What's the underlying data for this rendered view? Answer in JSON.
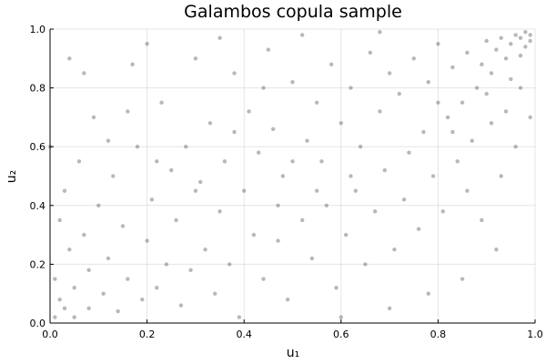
{
  "chart_data": {
    "type": "scatter",
    "title": "Galambos copula sample",
    "xlabel": "u₁",
    "ylabel": "u₂",
    "xlim": [
      0,
      1
    ],
    "ylim": [
      0,
      1
    ],
    "xticks": [
      "0.0",
      "0.2",
      "0.4",
      "0.6",
      "0.8",
      "1.0"
    ],
    "yticks": [
      "0.0",
      "0.2",
      "0.4",
      "0.6",
      "0.8",
      "1.0"
    ],
    "grid": true,
    "legend": "none",
    "marker_color": "#333333",
    "points": [
      [
        0.98,
        0.99
      ],
      [
        0.99,
        0.98
      ],
      [
        0.97,
        0.97
      ],
      [
        0.96,
        0.98
      ],
      [
        0.99,
        0.96
      ],
      [
        0.95,
        0.95
      ],
      [
        0.98,
        0.94
      ],
      [
        0.93,
        0.97
      ],
      [
        0.92,
        0.93
      ],
      [
        0.97,
        0.91
      ],
      [
        0.94,
        0.9
      ],
      [
        0.9,
        0.96
      ],
      [
        0.89,
        0.88
      ],
      [
        0.91,
        0.85
      ],
      [
        0.86,
        0.92
      ],
      [
        0.88,
        0.8
      ],
      [
        0.83,
        0.87
      ],
      [
        0.95,
        0.83
      ],
      [
        0.8,
        0.95
      ],
      [
        0.85,
        0.75
      ],
      [
        0.78,
        0.82
      ],
      [
        0.82,
        0.7
      ],
      [
        0.75,
        0.9
      ],
      [
        0.72,
        0.78
      ],
      [
        0.7,
        0.85
      ],
      [
        0.77,
        0.65
      ],
      [
        0.68,
        0.72
      ],
      [
        0.66,
        0.92
      ],
      [
        0.64,
        0.6
      ],
      [
        0.62,
        0.8
      ],
      [
        0.6,
        0.68
      ],
      [
        0.58,
        0.88
      ],
      [
        0.56,
        0.55
      ],
      [
        0.55,
        0.75
      ],
      [
        0.53,
        0.62
      ],
      [
        0.5,
        0.82
      ],
      [
        0.48,
        0.5
      ],
      [
        0.46,
        0.66
      ],
      [
        0.45,
        0.93
      ],
      [
        0.43,
        0.58
      ],
      [
        0.41,
        0.72
      ],
      [
        0.4,
        0.45
      ],
      [
        0.38,
        0.85
      ],
      [
        0.36,
        0.55
      ],
      [
        0.35,
        0.38
      ],
      [
        0.33,
        0.68
      ],
      [
        0.31,
        0.48
      ],
      [
        0.3,
        0.9
      ],
      [
        0.28,
        0.6
      ],
      [
        0.26,
        0.35
      ],
      [
        0.25,
        0.52
      ],
      [
        0.23,
        0.75
      ],
      [
        0.21,
        0.42
      ],
      [
        0.2,
        0.28
      ],
      [
        0.18,
        0.6
      ],
      [
        0.17,
        0.88
      ],
      [
        0.15,
        0.33
      ],
      [
        0.13,
        0.5
      ],
      [
        0.12,
        0.22
      ],
      [
        0.1,
        0.4
      ],
      [
        0.09,
        0.7
      ],
      [
        0.08,
        0.18
      ],
      [
        0.07,
        0.3
      ],
      [
        0.06,
        0.55
      ],
      [
        0.05,
        0.12
      ],
      [
        0.04,
        0.25
      ],
      [
        0.03,
        0.05
      ],
      [
        0.02,
        0.08
      ],
      [
        0.01,
        0.02
      ],
      [
        0.02,
        0.35
      ],
      [
        0.0,
        0.6
      ],
      [
        0.01,
        0.15
      ],
      [
        0.03,
        0.45
      ],
      [
        0.05,
        0.02
      ],
      [
        0.08,
        0.05
      ],
      [
        0.11,
        0.1
      ],
      [
        0.14,
        0.04
      ],
      [
        0.16,
        0.15
      ],
      [
        0.19,
        0.08
      ],
      [
        0.22,
        0.12
      ],
      [
        0.24,
        0.2
      ],
      [
        0.27,
        0.06
      ],
      [
        0.29,
        0.18
      ],
      [
        0.32,
        0.25
      ],
      [
        0.34,
        0.1
      ],
      [
        0.37,
        0.2
      ],
      [
        0.39,
        0.02
      ],
      [
        0.42,
        0.3
      ],
      [
        0.44,
        0.15
      ],
      [
        0.47,
        0.28
      ],
      [
        0.49,
        0.08
      ],
      [
        0.52,
        0.35
      ],
      [
        0.54,
        0.22
      ],
      [
        0.57,
        0.4
      ],
      [
        0.59,
        0.12
      ],
      [
        0.61,
        0.3
      ],
      [
        0.63,
        0.45
      ],
      [
        0.65,
        0.2
      ],
      [
        0.67,
        0.38
      ],
      [
        0.69,
        0.52
      ],
      [
        0.71,
        0.25
      ],
      [
        0.73,
        0.42
      ],
      [
        0.74,
        0.58
      ],
      [
        0.76,
        0.32
      ],
      [
        0.79,
        0.5
      ],
      [
        0.81,
        0.38
      ],
      [
        0.84,
        0.55
      ],
      [
        0.86,
        0.45
      ],
      [
        0.87,
        0.62
      ],
      [
        0.89,
        0.35
      ],
      [
        0.91,
        0.68
      ],
      [
        0.93,
        0.5
      ],
      [
        0.94,
        0.72
      ],
      [
        0.96,
        0.6
      ],
      [
        0.97,
        0.8
      ],
      [
        0.99,
        0.7
      ],
      [
        0.92,
        0.25
      ],
      [
        0.85,
        0.15
      ],
      [
        0.78,
        0.1
      ],
      [
        0.7,
        0.05
      ],
      [
        0.6,
        0.02
      ],
      [
        0.5,
        0.55
      ],
      [
        0.44,
        0.8
      ],
      [
        0.38,
        0.65
      ],
      [
        0.3,
        0.45
      ],
      [
        0.22,
        0.55
      ],
      [
        0.16,
        0.72
      ],
      [
        0.12,
        0.62
      ],
      [
        0.07,
        0.85
      ],
      [
        0.04,
        0.9
      ],
      [
        0.2,
        0.95
      ],
      [
        0.35,
        0.97
      ],
      [
        0.52,
        0.98
      ],
      [
        0.68,
        0.99
      ],
      [
        0.62,
        0.5
      ],
      [
        0.55,
        0.45
      ],
      [
        0.47,
        0.4
      ],
      [
        0.8,
        0.75
      ],
      [
        0.83,
        0.65
      ],
      [
        0.9,
        0.78
      ]
    ]
  }
}
